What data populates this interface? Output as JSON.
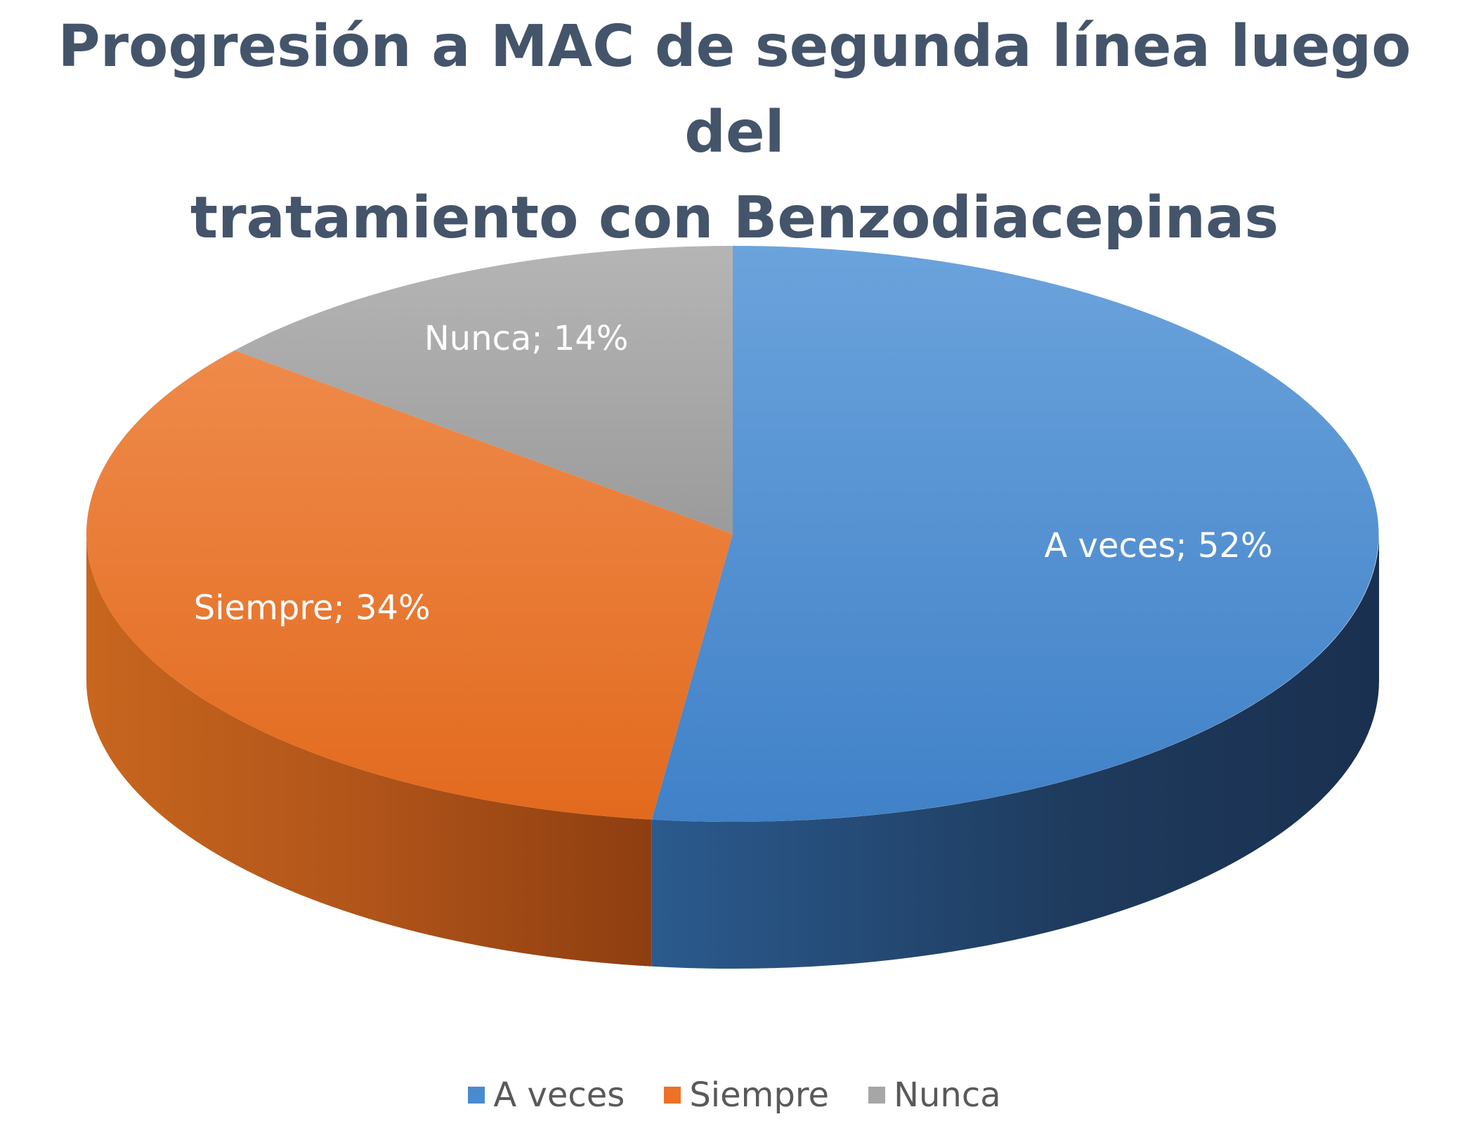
{
  "chart_data": {
    "type": "pie",
    "title": "Progresión a MAC de segunda línea luego del tratamiento con Benzodiacepinas",
    "categories": [
      "A veces",
      "Siempre",
      "Nunca"
    ],
    "values": [
      52,
      34,
      14
    ],
    "unit": "%",
    "data_labels": [
      "A veces; 52%",
      "Siempre; 34%",
      "Nunca; 14%"
    ],
    "colors": [
      "#4a8bd0",
      "#ed7126",
      "#a6a6a6"
    ],
    "style": "3d",
    "legend": {
      "placement": "bottom",
      "entries": [
        "A veces",
        "Siempre",
        "Nunca"
      ]
    }
  }
}
